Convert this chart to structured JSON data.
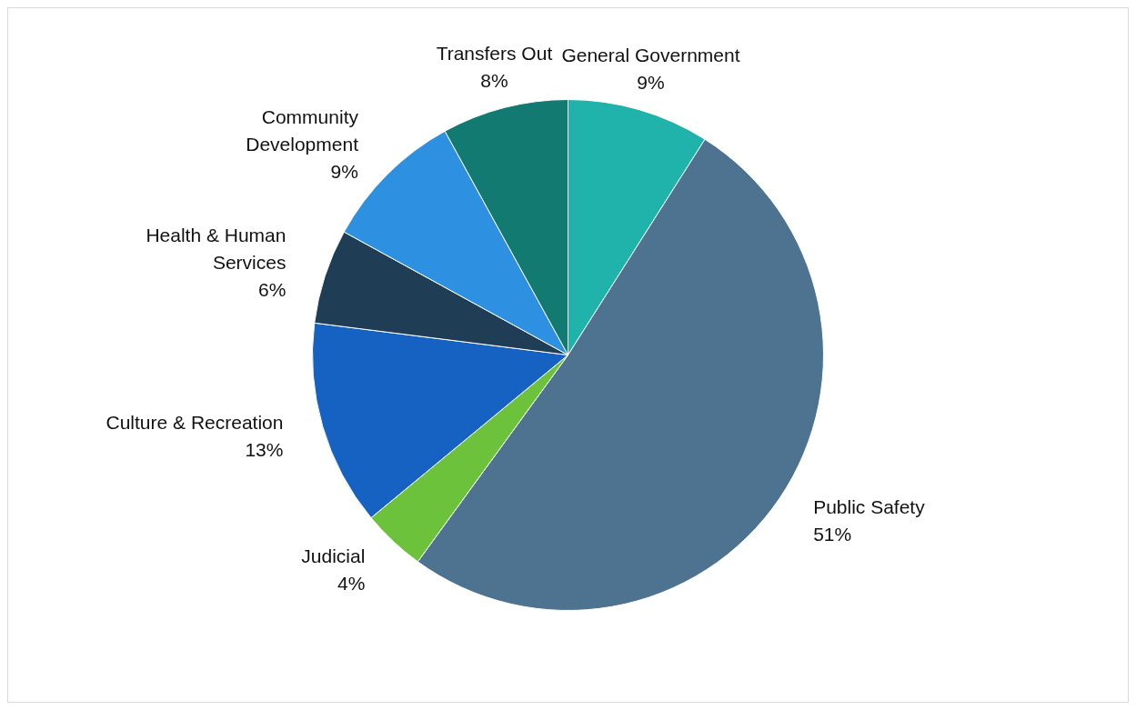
{
  "chart_data": {
    "type": "pie",
    "categories": [
      "General Government",
      "Public Safety",
      "Judicial",
      "Culture & Recreation",
      "Health & Human Services",
      "Community Development",
      "Transfers Out"
    ],
    "values": [
      9,
      51,
      4,
      13,
      6,
      9,
      8
    ],
    "value_labels": [
      "9%",
      "51%",
      "4%",
      "13%",
      "6%",
      "9%",
      "8%"
    ],
    "colors": [
      "#1fb3ac",
      "#4d7391",
      "#6cc23a",
      "#1662c2",
      "#1f3d55",
      "#2e90e0",
      "#127a70"
    ],
    "legend": false
  }
}
